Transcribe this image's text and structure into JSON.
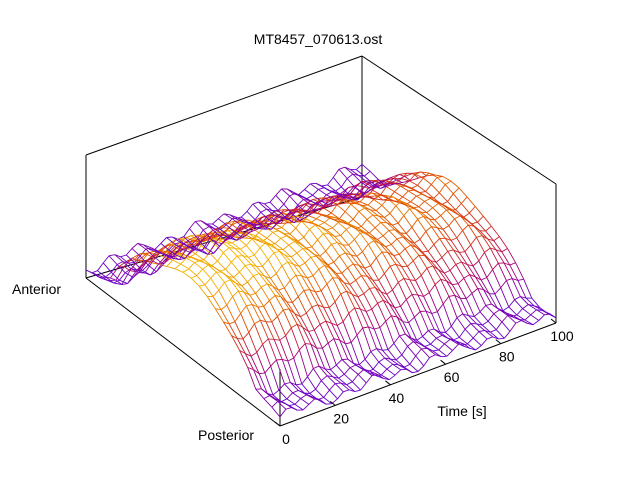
{
  "chart_data": {
    "type": "surface",
    "title": "MT8457_070613.ost",
    "xlabel": "Time [s]",
    "xlim": [
      0,
      100
    ],
    "xticks": [
      0,
      20,
      40,
      60,
      80,
      100
    ],
    "ylabels": {
      "near": "Posterior",
      "far": "Anterior"
    },
    "grid": false,
    "colormap": [
      "#6a00c8",
      "#b0006a",
      "#e04a00",
      "#f5b400"
    ],
    "ridge": {
      "peak_position_fraction": 0.5,
      "height_at_time": [
        {
          "x": 0,
          "z": 0.97
        },
        {
          "x": 20,
          "z": 1.0
        },
        {
          "x": 40,
          "z": 0.88
        },
        {
          "x": 60,
          "z": 0.76
        },
        {
          "x": 80,
          "z": 0.7
        },
        {
          "x": 100,
          "z": 0.63
        }
      ]
    }
  }
}
